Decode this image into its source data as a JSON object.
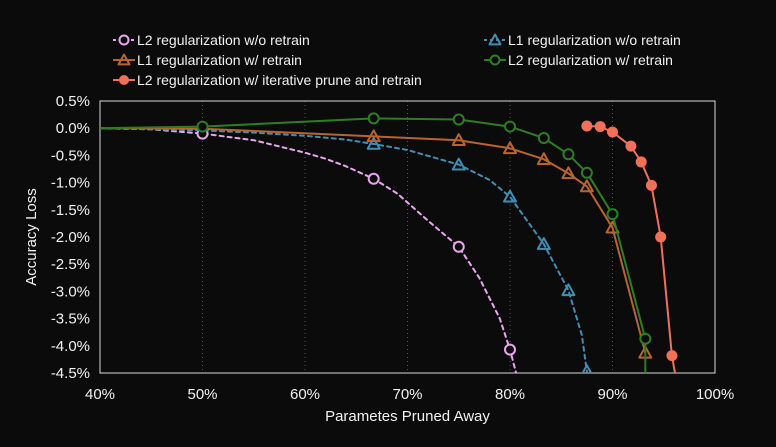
{
  "chart_data": {
    "type": "line",
    "xlabel": "Parametes Pruned Away",
    "ylabel": "Accuracy Loss",
    "xlim": [
      40,
      100
    ],
    "ylim": [
      -4.5,
      0.5
    ],
    "x_ticks": [
      40,
      50,
      60,
      70,
      80,
      90,
      100
    ],
    "x_tick_labels": [
      "40%",
      "50%",
      "60%",
      "70%",
      "80%",
      "90%",
      "100%"
    ],
    "y_ticks": [
      0.5,
      0.0,
      -0.5,
      -1.0,
      -1.5,
      -2.0,
      -2.5,
      -3.0,
      -3.5,
      -4.0,
      -4.5
    ],
    "y_tick_labels": [
      "0.5%",
      "0.0%",
      "-0.5%",
      "-1.0%",
      "-1.5%",
      "-2.0%",
      "-2.5%",
      "-3.0%",
      "-3.5%",
      "-4.0%",
      "-4.5%"
    ],
    "grid": "vertical dotted",
    "legend_position": "top",
    "series": [
      {
        "name": "L2 regularization w/o retrain",
        "color": "#e9a6ee",
        "dash": true,
        "marker": "circle-open",
        "line_x": [
          40,
          45,
          50,
          55,
          60,
          62,
          64,
          66.7,
          69,
          72,
          75,
          77,
          79,
          80,
          80.6
        ],
        "line_y": [
          0,
          -0.02,
          -0.1,
          -0.22,
          -0.45,
          -0.56,
          -0.7,
          -0.93,
          -1.2,
          -1.7,
          -2.18,
          -2.75,
          -3.5,
          -4.07,
          -4.5
        ],
        "marker_x": [
          50,
          66.7,
          75,
          80
        ],
        "marker_y": [
          -0.1,
          -0.93,
          -2.18,
          -4.07
        ]
      },
      {
        "name": "L1 regularization w/o retrain",
        "color": "#3f8fb4",
        "dash": true,
        "marker": "triangle-open",
        "line_x": [
          40,
          50,
          55,
          60,
          64,
          66.7,
          70,
          75,
          78,
          80,
          83.3,
          85.7,
          87,
          87.5
        ],
        "line_y": [
          0,
          -0.04,
          -0.08,
          -0.14,
          -0.21,
          -0.29,
          -0.4,
          -0.67,
          -0.95,
          -1.26,
          -2.13,
          -2.98,
          -3.8,
          -4.47
        ],
        "marker_x": [
          66.7,
          75,
          80,
          83.3,
          85.7,
          87.5
        ],
        "marker_y": [
          -0.29,
          -0.67,
          -1.26,
          -2.13,
          -2.98,
          -4.47
        ]
      },
      {
        "name": "L1 regularization w/ retrain",
        "color": "#b9642c",
        "dash": false,
        "marker": "triangle-open",
        "line_x": [
          40,
          50,
          66.7,
          75,
          80,
          83.3,
          85.7,
          87.5,
          90,
          93.2
        ],
        "line_y": [
          0,
          -0.01,
          -0.15,
          -0.22,
          -0.37,
          -0.57,
          -0.83,
          -1.07,
          -1.83,
          -4.13
        ],
        "marker_x": [
          66.7,
          75,
          80,
          83.3,
          85.7,
          87.5,
          90,
          93.2
        ],
        "marker_y": [
          -0.15,
          -0.22,
          -0.37,
          -0.57,
          -0.83,
          -1.07,
          -1.83,
          -4.13
        ]
      },
      {
        "name": "L2 regularization w/ retrain",
        "color": "#2e7d22",
        "dash": false,
        "marker": "circle-open",
        "line_x": [
          40,
          50,
          66.7,
          75,
          80,
          83.3,
          85.7,
          87.5,
          90,
          93.2
        ],
        "line_y": [
          0,
          0.03,
          0.18,
          0.16,
          0.03,
          -0.18,
          -0.48,
          -0.82,
          -1.58,
          -3.87
        ],
        "marker_x": [
          50,
          66.7,
          75,
          80,
          83.3,
          85.7,
          87.5,
          90,
          93.2
        ],
        "marker_y": [
          0.03,
          0.18,
          0.16,
          0.03,
          -0.18,
          -0.48,
          -0.82,
          -1.58,
          -3.87
        ],
        "line_end_x": 93.2,
        "line_end_y": -4.5
      },
      {
        "name": "L2 regularization w/ iterative prune and retrain",
        "color": "#f07058",
        "dash": false,
        "marker": "circle-filled",
        "line_x": [
          87.5,
          88.8,
          90,
          91.8,
          92.8,
          93.8,
          94.7,
          95.8,
          96.1
        ],
        "line_y": [
          0.04,
          0.03,
          -0.07,
          -0.33,
          -0.62,
          -1.05,
          -2.0,
          -4.18,
          -4.5
        ],
        "marker_x": [
          87.5,
          88.8,
          90,
          91.8,
          92.8,
          93.8,
          94.7,
          95.8
        ],
        "marker_y": [
          0.04,
          0.03,
          -0.07,
          -0.33,
          -0.62,
          -1.05,
          -2.0,
          -4.18
        ]
      }
    ]
  }
}
